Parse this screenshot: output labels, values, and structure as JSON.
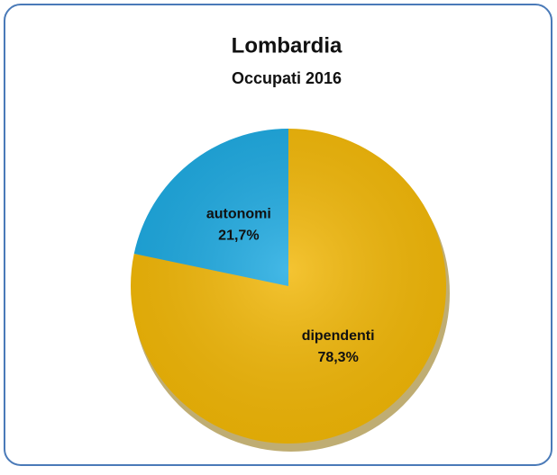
{
  "chart_data": {
    "type": "pie",
    "title": "Lombardia",
    "subtitle": "Occupati 2016",
    "categories": [
      "dipendenti",
      "autonomi"
    ],
    "values": [
      78.3,
      21.7
    ],
    "value_labels": [
      "78,3%",
      "21,7%"
    ],
    "colors": [
      "#f2b705",
      "#1ba9e1"
    ]
  }
}
